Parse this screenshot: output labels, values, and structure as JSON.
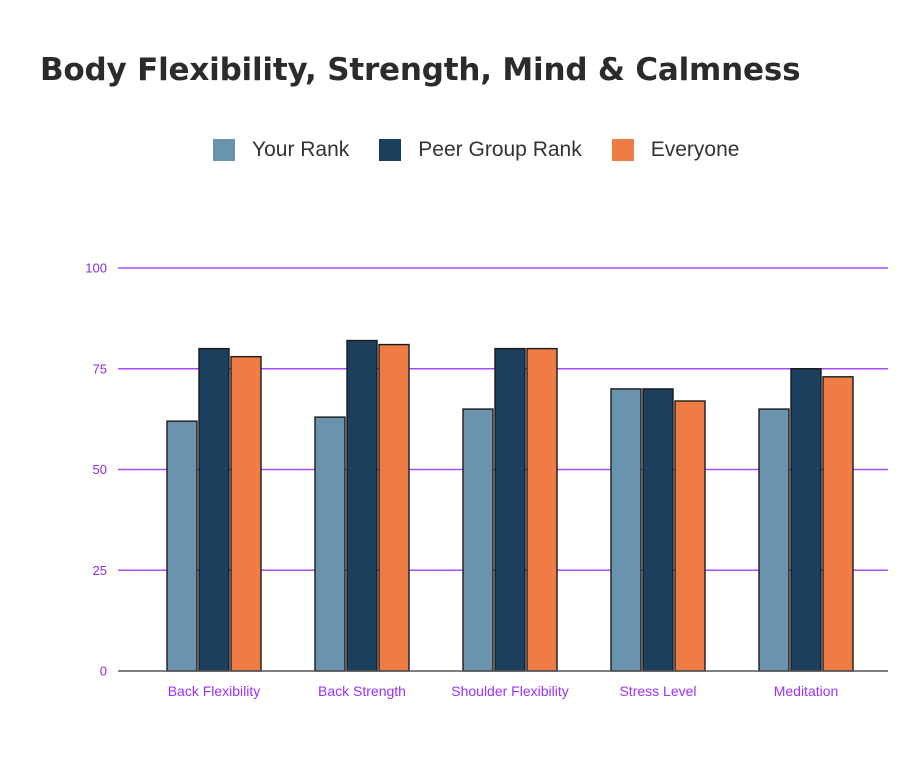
{
  "chart_data": {
    "type": "bar",
    "title": "Body Flexibility, Strength, Mind & Calmness",
    "categories": [
      "Back Flexibility",
      "Back Strength",
      "Shoulder Flexibility",
      "Stress Level",
      "Meditation"
    ],
    "series": [
      {
        "name": "Your Rank",
        "values": [
          62,
          63,
          65,
          70,
          65
        ]
      },
      {
        "name": "Peer Group Rank",
        "values": [
          80,
          82,
          80,
          70,
          75
        ]
      },
      {
        "name": "Everyone",
        "values": [
          78,
          81,
          80,
          67,
          73
        ]
      }
    ],
    "ylim": [
      0,
      100
    ],
    "yticks": [
      "0",
      "25",
      "50",
      "75",
      "100"
    ],
    "legend_position": "top",
    "grid": true,
    "colors": {
      "series": [
        "#6a93ae",
        "#1c3f5e",
        "#ef7c45"
      ],
      "grid": "#a64dff",
      "tick_text": "#8a2be2",
      "category_text": "#9b30ff",
      "title": "#2b2b2b"
    }
  }
}
